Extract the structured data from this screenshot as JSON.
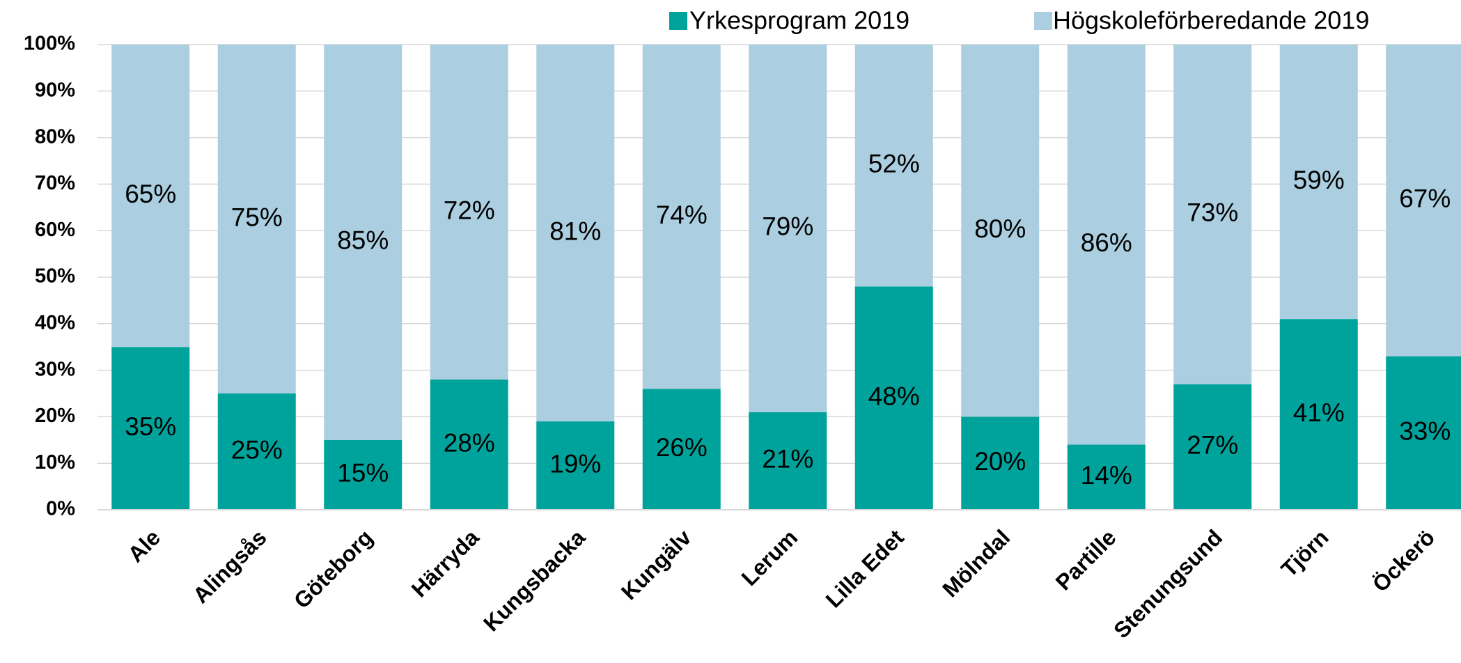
{
  "chart_data": {
    "type": "stacked_bar",
    "categories": [
      "Ale",
      "Alingsås",
      "Göteborg",
      "Härryda",
      "Kungsbacka",
      "Kungälv",
      "Lerum",
      "Lilla Edet",
      "Mölndal",
      "Partille",
      "Stenungsund",
      "Tjörn",
      "Öckerö"
    ],
    "series": [
      {
        "name": "Yrkesprogram 2019",
        "color": "#00a39b",
        "values": [
          35,
          25,
          15,
          28,
          19,
          26,
          21,
          48,
          20,
          14,
          27,
          41,
          33
        ],
        "value_labels": [
          "35%",
          "25%",
          "15%",
          "28%",
          "19%",
          "26%",
          "21%",
          "48%",
          "20%",
          "14%",
          "27%",
          "41%",
          "33%"
        ]
      },
      {
        "name": "Högskoleförberedande 2019",
        "color": "#abcfe0",
        "values": [
          65,
          75,
          85,
          72,
          81,
          74,
          79,
          52,
          80,
          86,
          73,
          59,
          67
        ],
        "value_labels": [
          "65%",
          "75%",
          "85%",
          "72%",
          "81%",
          "74%",
          "79%",
          "52%",
          "80%",
          "86%",
          "73%",
          "59%",
          "67%"
        ]
      }
    ],
    "ylim": [
      0,
      100
    ],
    "yticks": [
      {
        "value": 0,
        "label": "0%"
      },
      {
        "value": 10,
        "label": "10%"
      },
      {
        "value": 20,
        "label": "20%"
      },
      {
        "value": 30,
        "label": "30%"
      },
      {
        "value": 40,
        "label": "40%"
      },
      {
        "value": 50,
        "label": "50%"
      },
      {
        "value": 60,
        "label": "60%"
      },
      {
        "value": 70,
        "label": "70%"
      },
      {
        "value": 80,
        "label": "80%"
      },
      {
        "value": 90,
        "label": "90%"
      },
      {
        "value": 100,
        "label": "100%"
      }
    ],
    "grid": true,
    "legend": "top"
  }
}
